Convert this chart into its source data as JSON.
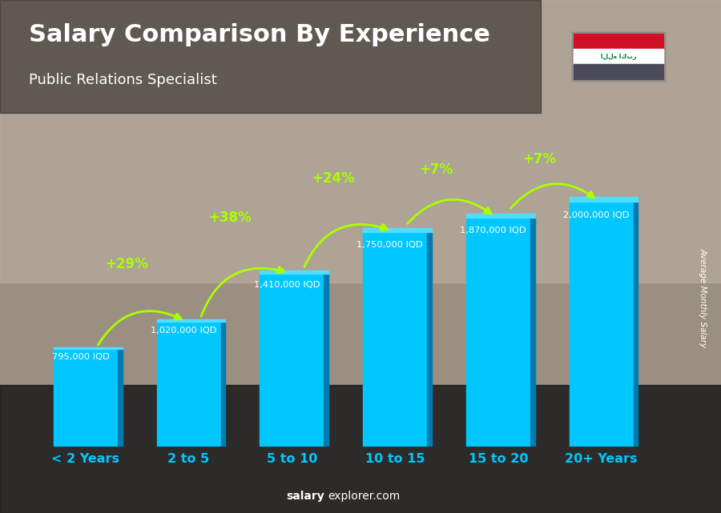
{
  "title": "Salary Comparison By Experience",
  "subtitle": "Public Relations Specialist",
  "categories": [
    "< 2 Years",
    "2 to 5",
    "5 to 10",
    "10 to 15",
    "15 to 20",
    "20+ Years"
  ],
  "values": [
    795000,
    1020000,
    1410000,
    1750000,
    1870000,
    2000000
  ],
  "value_labels": [
    "795,000 IQD",
    "1,020,000 IQD",
    "1,410,000 IQD",
    "1,750,000 IQD",
    "1,870,000 IQD",
    "2,000,000 IQD"
  ],
  "pct_labels": [
    "+29%",
    "+38%",
    "+24%",
    "+7%",
    "+7%"
  ],
  "bar_color": "#00C8FF",
  "bar_side_color": "#007BAF",
  "bar_top_color": "#50DDFF",
  "background_color": "#3a3a4a",
  "title_color": "#FFFFFF",
  "subtitle_color": "#FFFFFF",
  "label_color": "#FFFFFF",
  "pct_color": "#AAFF00",
  "tick_color": "#00C8FF",
  "ylabel": "Average Monthly Salary",
  "footer": "salaryexplorer.com",
  "footer_bold": "salary",
  "ylim": [
    0,
    2600000
  ],
  "flag_colors": [
    "#CE1126",
    "#FFFFFF",
    "#000000"
  ],
  "flag_text": "الله اكبر",
  "flag_text_color": "#007A3D"
}
